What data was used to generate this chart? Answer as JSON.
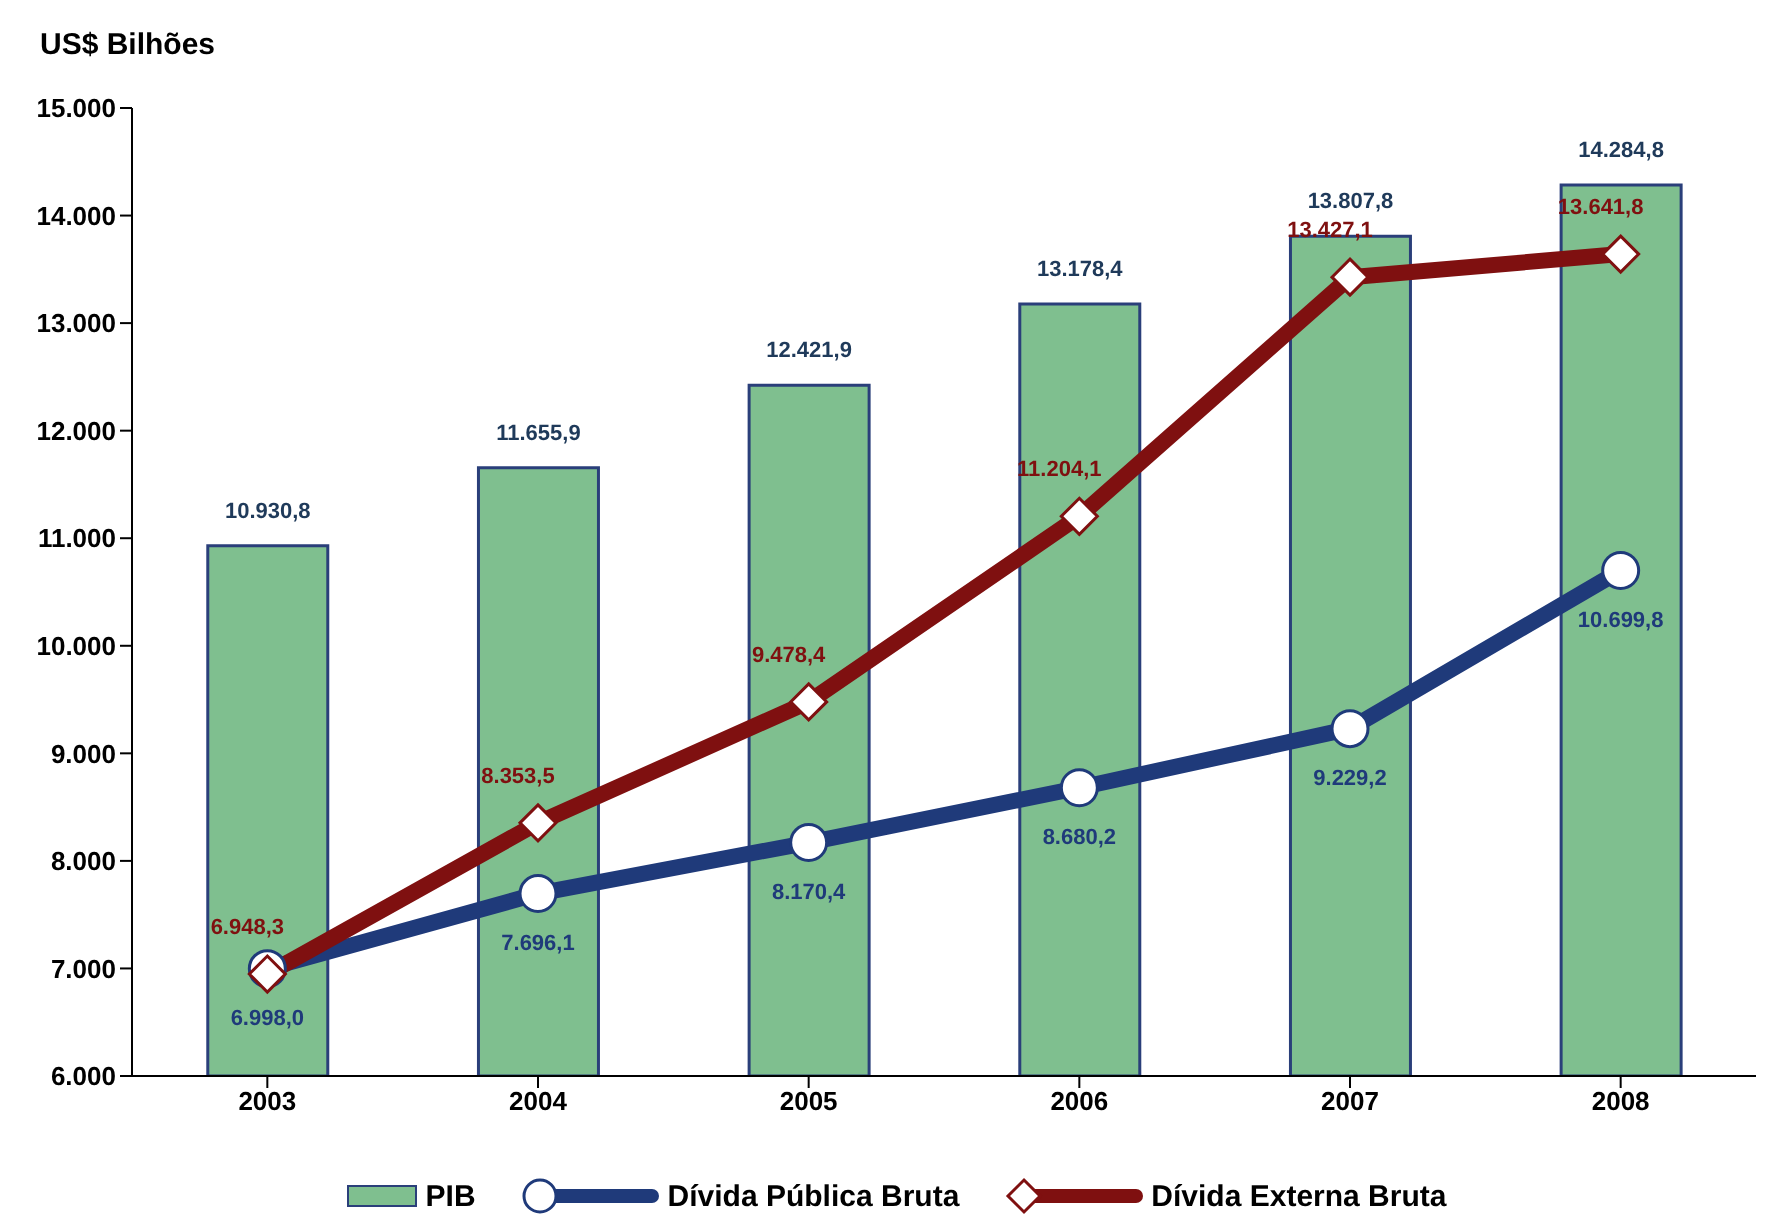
{
  "chart_data": {
    "type": "bar",
    "ylabel": "US$ Bilhões",
    "categories": [
      "2003",
      "2004",
      "2005",
      "2006",
      "2007",
      "2008"
    ],
    "series": [
      {
        "name": "PIB",
        "color": "#7fbf8f",
        "values": [
          10930.8,
          11655.9,
          12421.9,
          13178.4,
          13807.8,
          14284.8
        ],
        "value_labels": [
          "10.930,8",
          "11.655,9",
          "12.421,9",
          "13.178,4",
          "13.807,8",
          "14.284,8"
        ]
      },
      {
        "name": "Dívida Pública Bruta",
        "type": "line",
        "color": "#1f3a7a",
        "marker": "circle",
        "values": [
          6998.0,
          7696.1,
          8170.4,
          8680.2,
          9229.2,
          10699.8
        ],
        "value_labels": [
          "6.998,0",
          "7.696,1",
          "8.170,4",
          "8.680,2",
          "9.229,2",
          "10.699,8"
        ]
      },
      {
        "name": "Dívida Externa Bruta",
        "type": "line",
        "color": "#7f1010",
        "marker": "diamond",
        "values": [
          6948.3,
          8353.5,
          9478.4,
          11204.1,
          13427.1,
          13641.8
        ],
        "value_labels": [
          "6.948,3",
          "8.353,5",
          "9.478,4",
          "11.204,1",
          "13.427,1",
          "13.641,8"
        ]
      }
    ],
    "ylim": [
      6000,
      15000
    ],
    "yticks": [
      {
        "value": 6000,
        "label": "6.000"
      },
      {
        "value": 7000,
        "label": "7.000"
      },
      {
        "value": 8000,
        "label": "8.000"
      },
      {
        "value": 9000,
        "label": "9.000"
      },
      {
        "value": 10000,
        "label": "10.000"
      },
      {
        "value": 11000,
        "label": "11.000"
      },
      {
        "value": 12000,
        "label": "12.000"
      },
      {
        "value": 13000,
        "label": "13.000"
      },
      {
        "value": 14000,
        "label": "14.000"
      },
      {
        "value": 15000,
        "label": "15.000"
      }
    ],
    "grid": false,
    "legend": "bottom"
  }
}
